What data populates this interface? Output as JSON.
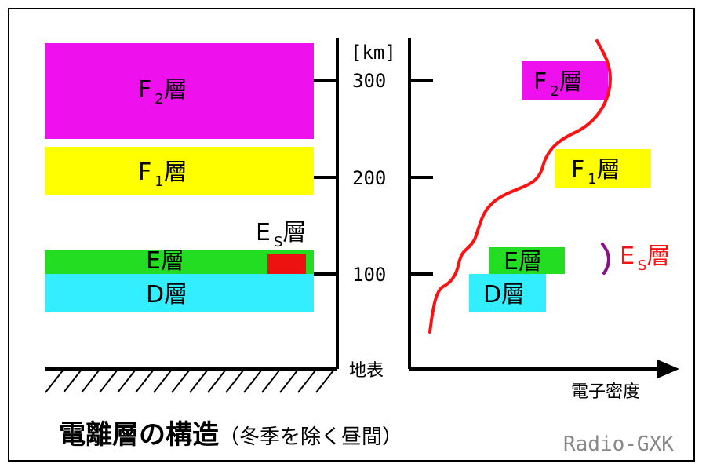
{
  "colors": {
    "f2": "#ee11ee",
    "f1": "#ffff00",
    "e": "#22dd22",
    "d": "#33eeff",
    "es": "#ee1111",
    "curve": "#ff1111",
    "es_arc": "#881188",
    "credit": "#888888"
  },
  "left_diagram": {
    "layers": [
      {
        "id": "f2",
        "main": "F",
        "sub": "2",
        "suffix": "層"
      },
      {
        "id": "f1",
        "main": "F",
        "sub": "1",
        "suffix": "層"
      },
      {
        "id": "e",
        "main": "E",
        "sub": "",
        "suffix": "層"
      },
      {
        "id": "d",
        "main": "D",
        "sub": "",
        "suffix": "層"
      }
    ],
    "es_label": {
      "main": "E",
      "sub": "S",
      "suffix": "層"
    }
  },
  "altitude_axis": {
    "unit": "[km]",
    "ticks": [
      "300",
      "200",
      "100"
    ],
    "ground_label": "地表"
  },
  "right_diagram": {
    "x_axis_label": "電子密度",
    "layers": [
      {
        "id": "f2",
        "main": "F",
        "sub": "2",
        "suffix": "層"
      },
      {
        "id": "f1",
        "main": "F",
        "sub": "1",
        "suffix": "層"
      },
      {
        "id": "e",
        "main": "E",
        "sub": "",
        "suffix": "層"
      },
      {
        "id": "d",
        "main": "D",
        "sub": "",
        "suffix": "層"
      }
    ],
    "es_label": {
      "main": "E",
      "sub": "S",
      "suffix": "層"
    }
  },
  "title": {
    "main": "電離層の構造",
    "sub": "（冬季を除く昼間）"
  },
  "credit": "Radio-GXK"
}
